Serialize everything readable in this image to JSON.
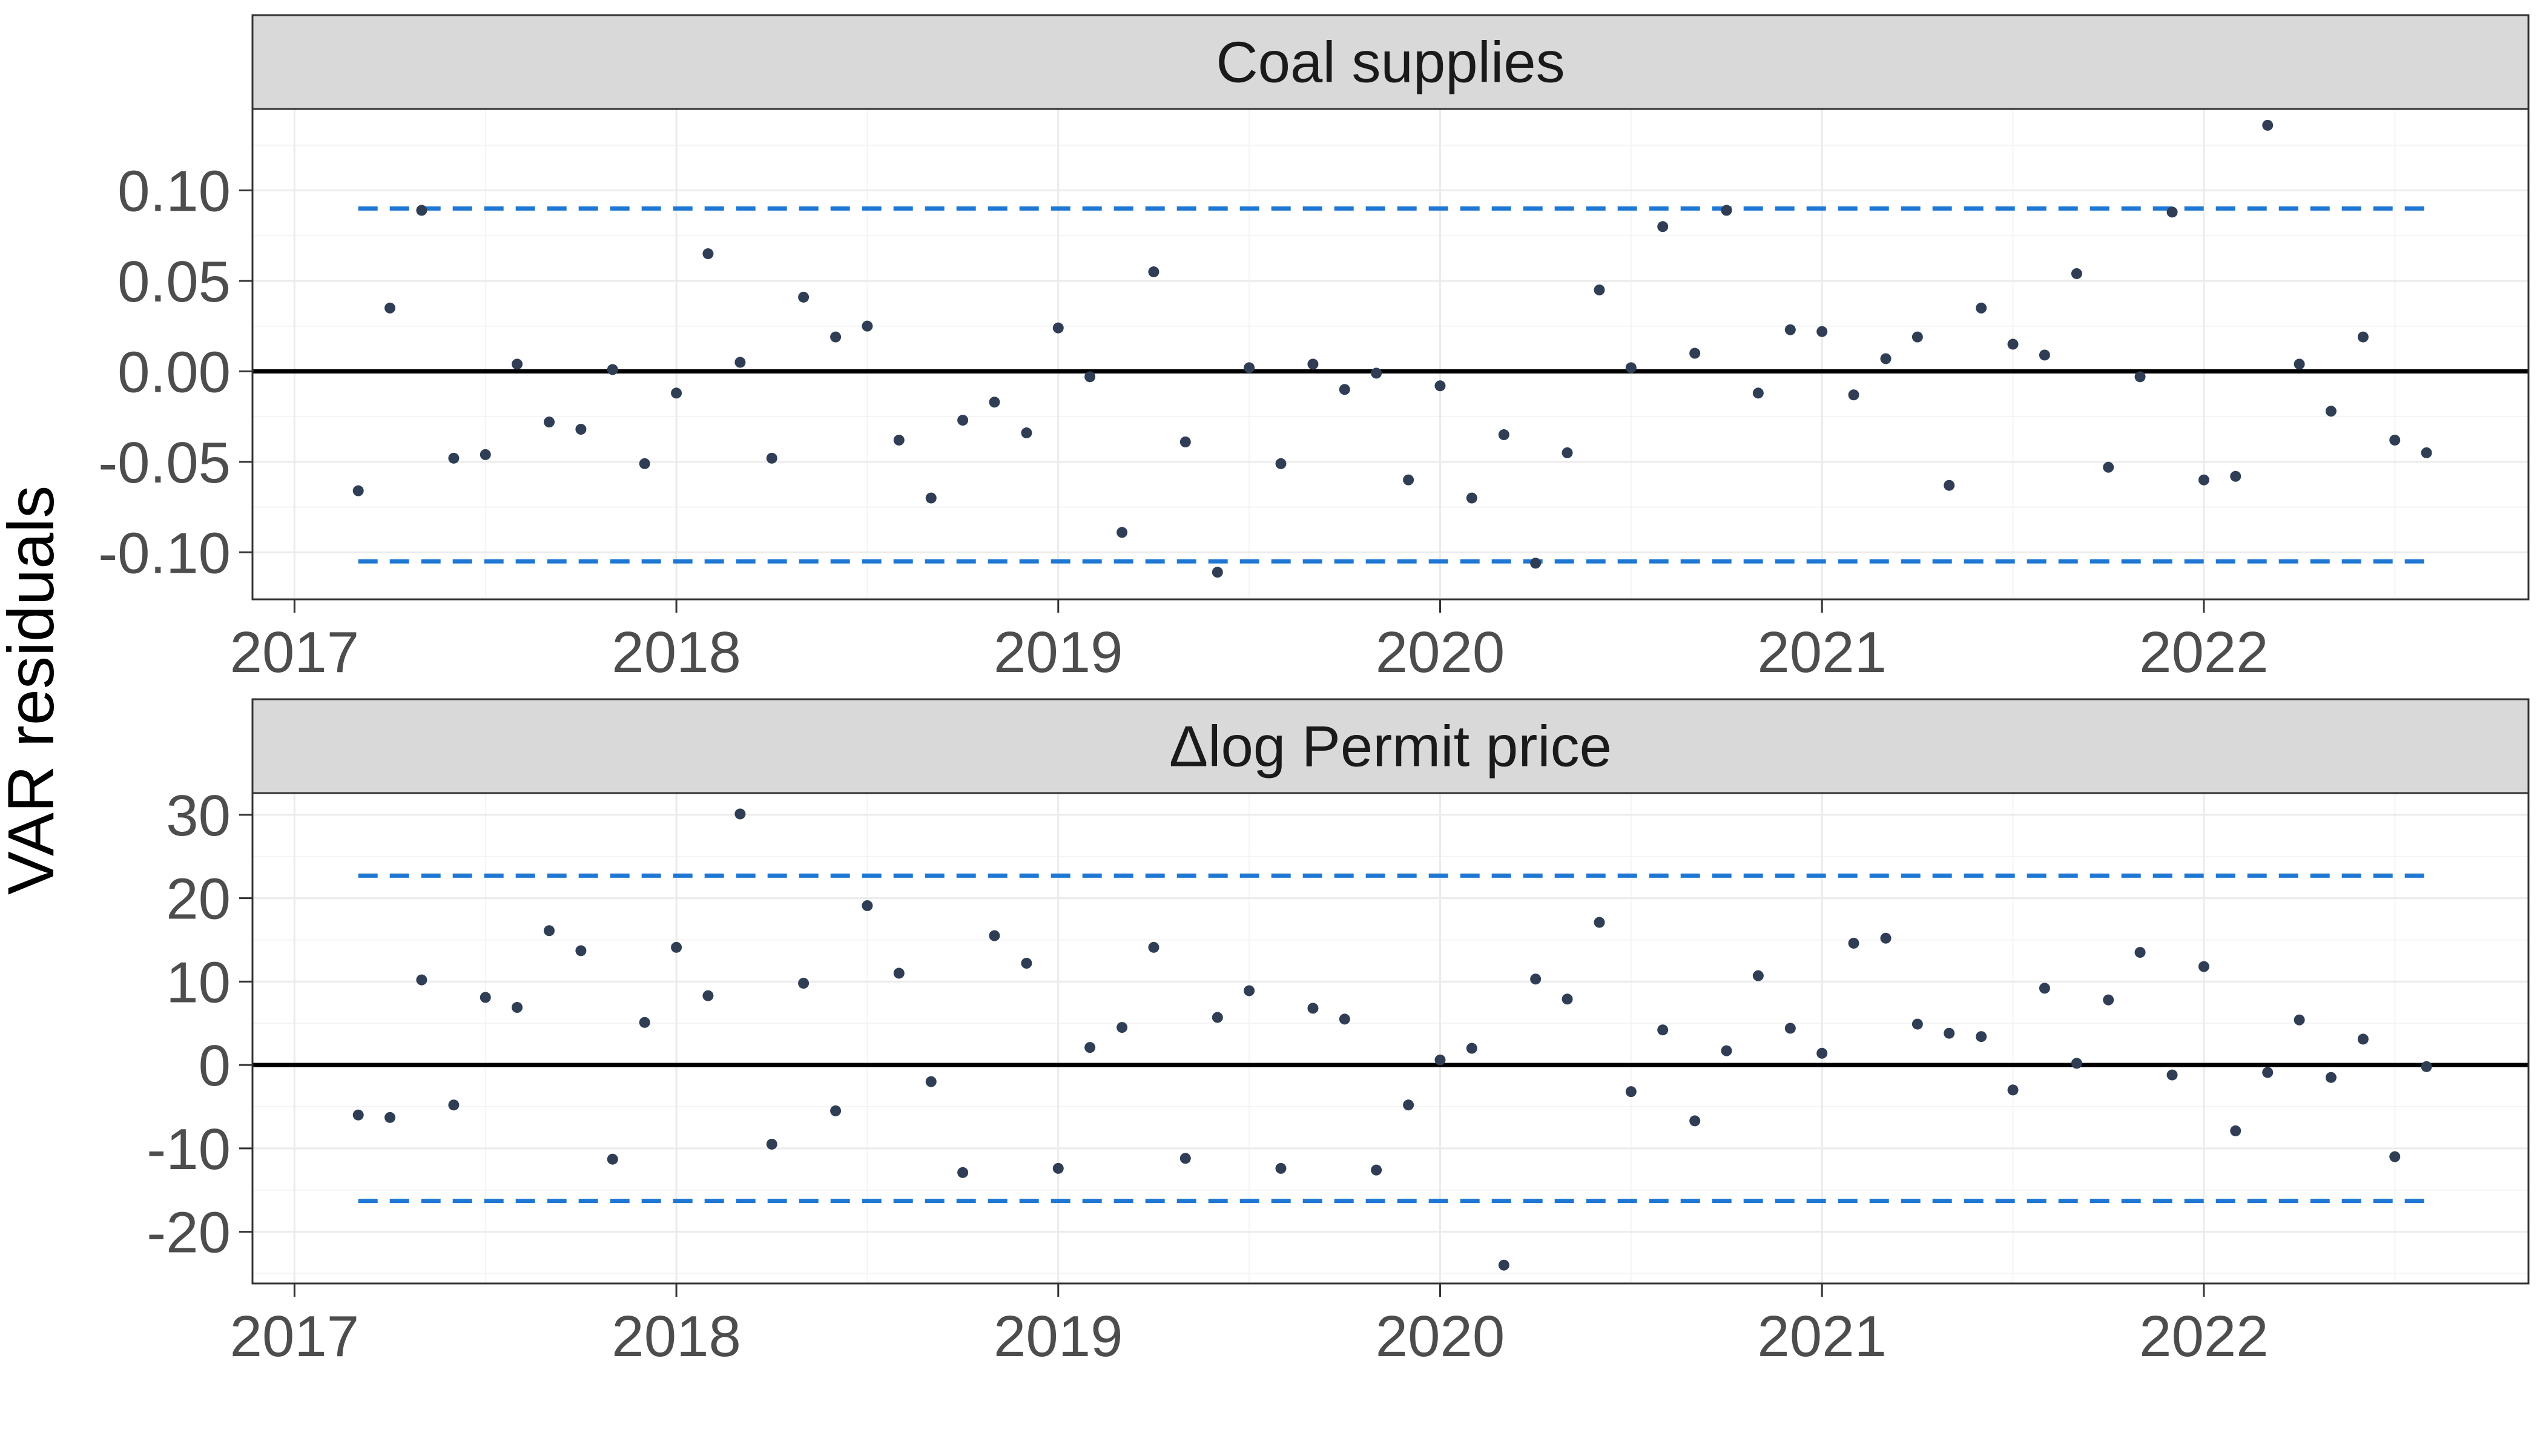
{
  "chart_data": {
    "type": "scatter",
    "ylabel": "VAR residuals",
    "xlabel": "",
    "x_tick_labels": [
      "2017",
      "2018",
      "2019",
      "2020",
      "2021",
      "2022"
    ],
    "x_range": [
      2016.89,
      2022.85
    ],
    "grid": true,
    "colors": {
      "point": "#2f3e55",
      "band": "#1f77d4",
      "zero_line": "#000000",
      "strip_fill": "#d9d9d9",
      "grid_major": "#ebebeb",
      "grid_minor": "#f4f4f4",
      "panel_border": "#333333"
    },
    "panels": [
      {
        "title": "Coal supplies",
        "y_tick_labels": [
          "0.10",
          "0.05",
          "0.00",
          "-0.05",
          "-0.10"
        ],
        "y_ticks": [
          0.1,
          0.05,
          0.0,
          -0.05,
          -0.1
        ],
        "y_range": [
          -0.126,
          0.145
        ],
        "band": {
          "upper": 0.09,
          "lower": -0.105
        },
        "points": {
          "x": [
            2017.167,
            2017.25,
            2017.333,
            2017.417,
            2017.5,
            2017.583,
            2017.667,
            2017.75,
            2017.833,
            2017.917,
            2018.0,
            2018.083,
            2018.167,
            2018.25,
            2018.333,
            2018.417,
            2018.5,
            2018.583,
            2018.667,
            2018.75,
            2018.833,
            2018.917,
            2019.0,
            2019.083,
            2019.167,
            2019.25,
            2019.333,
            2019.417,
            2019.5,
            2019.583,
            2019.667,
            2019.75,
            2019.833,
            2019.917,
            2020.0,
            2020.083,
            2020.167,
            2020.25,
            2020.333,
            2020.417,
            2020.5,
            2020.583,
            2020.667,
            2020.75,
            2020.833,
            2020.917,
            2021.0,
            2021.083,
            2021.167,
            2021.25,
            2021.333,
            2021.417,
            2021.5,
            2021.583,
            2021.667,
            2021.75,
            2021.833,
            2021.917,
            2022.0,
            2022.083,
            2022.167,
            2022.25,
            2022.333,
            2022.417,
            2022.5,
            2022.583
          ],
          "y": [
            -0.066,
            0.035,
            0.089,
            -0.048,
            -0.046,
            0.004,
            -0.028,
            -0.032,
            0.001,
            -0.051,
            -0.012,
            0.065,
            0.005,
            -0.048,
            0.041,
            0.019,
            0.025,
            -0.038,
            -0.07,
            -0.027,
            -0.017,
            -0.034,
            0.024,
            -0.003,
            -0.089,
            0.055,
            -0.039,
            -0.111,
            0.002,
            -0.051,
            0.004,
            -0.01,
            -0.001,
            -0.06,
            -0.008,
            -0.07,
            -0.035,
            -0.106,
            -0.045,
            0.045,
            0.002,
            0.08,
            0.01,
            0.089,
            -0.012,
            0.023,
            0.022,
            -0.013,
            0.007,
            0.019,
            -0.063,
            0.035,
            0.015,
            0.009,
            0.054,
            -0.053,
            -0.003,
            0.088,
            -0.06,
            -0.058,
            0.136,
            0.004,
            -0.022,
            0.019,
            -0.038,
            -0.045
          ]
        }
      },
      {
        "title": "Δlog Permit price",
        "y_tick_labels": [
          "30",
          "20",
          "10",
          "0",
          "-10",
          "-20"
        ],
        "y_ticks": [
          30,
          20,
          10,
          0,
          -10,
          -20
        ],
        "y_range": [
          -26.2,
          32.6
        ],
        "band": {
          "upper": 22.7,
          "lower": -16.3
        },
        "points": {
          "x": [
            2017.167,
            2017.25,
            2017.333,
            2017.417,
            2017.5,
            2017.583,
            2017.667,
            2017.75,
            2017.833,
            2017.917,
            2018.0,
            2018.083,
            2018.167,
            2018.25,
            2018.333,
            2018.417,
            2018.5,
            2018.583,
            2018.667,
            2018.75,
            2018.833,
            2018.917,
            2019.0,
            2019.083,
            2019.167,
            2019.25,
            2019.333,
            2019.417,
            2019.5,
            2019.583,
            2019.667,
            2019.75,
            2019.833,
            2019.917,
            2020.0,
            2020.083,
            2020.167,
            2020.25,
            2020.333,
            2020.417,
            2020.5,
            2020.583,
            2020.667,
            2020.75,
            2020.833,
            2020.917,
            2021.0,
            2021.083,
            2021.167,
            2021.25,
            2021.333,
            2021.417,
            2021.5,
            2021.583,
            2021.667,
            2021.75,
            2021.833,
            2021.917,
            2022.0,
            2022.083,
            2022.167,
            2022.25,
            2022.333,
            2022.417,
            2022.5,
            2022.583
          ],
          "y": [
            -6.0,
            -6.3,
            10.2,
            -4.8,
            8.1,
            6.9,
            16.1,
            13.7,
            -11.3,
            5.1,
            14.1,
            8.3,
            30.1,
            -9.5,
            9.8,
            -5.5,
            19.1,
            11.0,
            -2.0,
            -12.9,
            15.5,
            12.2,
            -12.4,
            2.1,
            4.5,
            14.1,
            -11.2,
            5.7,
            8.9,
            -12.4,
            6.8,
            5.5,
            -12.6,
            -4.8,
            0.6,
            2.0,
            -24.0,
            10.3,
            7.9,
            17.1,
            -3.2,
            4.2,
            -6.7,
            1.7,
            10.7,
            4.4,
            1.4,
            14.6,
            15.2,
            4.9,
            3.8,
            3.4,
            -3.0,
            9.2,
            0.2,
            7.8,
            13.5,
            -1.2,
            11.8,
            -7.9,
            -0.9,
            5.4,
            -1.5,
            3.1,
            -11.0,
            -0.2
          ]
        }
      }
    ]
  }
}
